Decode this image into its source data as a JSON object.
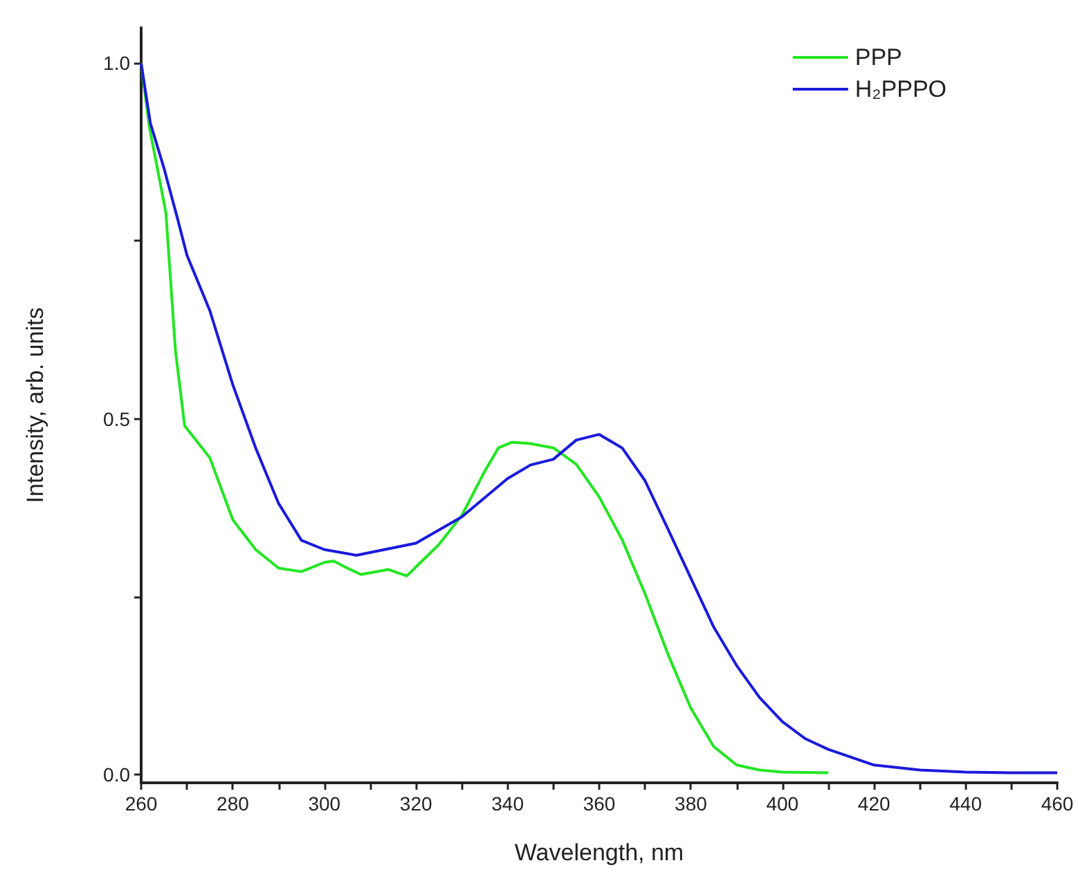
{
  "chart_data": {
    "type": "line",
    "xlabel": "Wavelength, nm",
    "ylabel": "Intensity, arb. units",
    "xlim": [
      260,
      460
    ],
    "ylim": [
      -0.012,
      1.05
    ],
    "xticks": [
      260,
      {
        "value": 270,
        "label": null
      },
      280,
      {
        "value": 290,
        "label": null
      },
      300,
      {
        "value": 310,
        "label": null
      },
      320,
      {
        "value": 330,
        "label": null
      },
      340,
      {
        "value": 350,
        "label": null
      },
      360,
      {
        "value": 370,
        "label": null
      },
      380,
      {
        "value": 390,
        "label": null
      },
      400,
      {
        "value": 410,
        "label": null
      },
      420,
      {
        "value": 430,
        "label": null
      },
      440,
      {
        "value": 450,
        "label": null
      },
      460
    ],
    "yticks": [
      {
        "value": 0,
        "label": "0.0"
      },
      {
        "value": 0.25,
        "label": null
      },
      {
        "value": 0.5,
        "label": "0.5"
      },
      {
        "value": 0.75,
        "label": null
      },
      {
        "value": 1,
        "label": "1.0"
      }
    ],
    "grid": false,
    "legend": "top right",
    "marker": "none",
    "line_style": "solid",
    "series": [
      {
        "name": "PPP",
        "color": "#22e622",
        "x": [
          260,
          261.8,
          265.4,
          267.5,
          269.5,
          275,
          280,
          285,
          290,
          295,
          300,
          302,
          305,
          308,
          314,
          318,
          325,
          330,
          335,
          338,
          341,
          345,
          350,
          355,
          360,
          365,
          370,
          375,
          380,
          385,
          390,
          395,
          400,
          410
        ],
        "values": [
          1.0,
          0.91,
          0.79,
          0.595,
          0.49,
          0.445,
          0.358,
          0.316,
          0.29,
          0.285,
          0.298,
          0.3,
          0.29,
          0.281,
          0.288,
          0.279,
          0.323,
          0.364,
          0.426,
          0.459,
          0.467,
          0.465,
          0.459,
          0.436,
          0.39,
          0.33,
          0.254,
          0.169,
          0.093,
          0.039,
          0.013,
          0.006,
          0.003,
          0.002
        ]
      },
      {
        "name": "H₂PPPO",
        "color": "#1a1adc",
        "x": [
          260,
          262,
          265,
          268,
          270,
          275,
          280,
          285,
          290,
          295,
          300,
          307,
          320,
          330,
          340,
          345,
          350,
          355,
          360,
          365,
          370,
          375,
          380,
          385,
          390,
          395,
          400,
          405,
          410,
          420,
          430,
          440,
          450,
          460
        ],
        "values": [
          1.0,
          0.916,
          0.852,
          0.78,
          0.73,
          0.652,
          0.548,
          0.459,
          0.381,
          0.329,
          0.316,
          0.308,
          0.325,
          0.362,
          0.416,
          0.435,
          0.443,
          0.47,
          0.478,
          0.459,
          0.413,
          0.345,
          0.276,
          0.207,
          0.153,
          0.108,
          0.074,
          0.05,
          0.035,
          0.013,
          0.006,
          0.003,
          0.002,
          0.002
        ]
      }
    ]
  }
}
